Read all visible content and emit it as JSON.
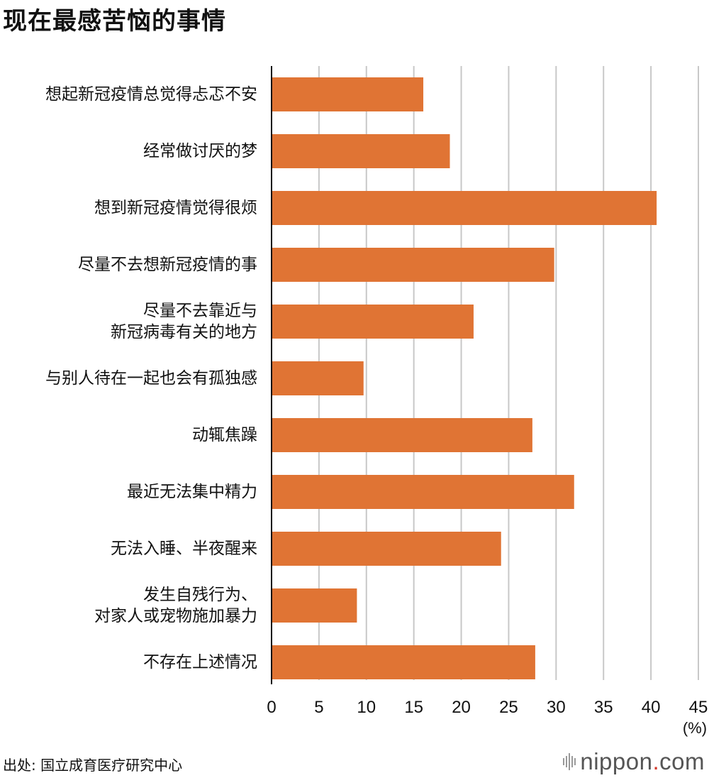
{
  "title": "现在最感苦恼的事情",
  "chart_data": {
    "type": "bar",
    "orientation": "horizontal",
    "categories": [
      [
        "想起新冠疫情总觉得忐忑不安"
      ],
      [
        "经常做讨厌的梦"
      ],
      [
        "想到新冠疫情觉得很烦"
      ],
      [
        "尽量不去想新冠疫情的事"
      ],
      [
        "尽量不去靠近与",
        "新冠病毒有关的地方"
      ],
      [
        "与别人待在一起也会有孤独感"
      ],
      [
        "动辄焦躁"
      ],
      [
        "最近无法集中精力"
      ],
      [
        "无法入睡、半夜醒来"
      ],
      [
        "发生自残行为、",
        "对家人或宠物施加暴力"
      ],
      [
        "不存在上述情况"
      ]
    ],
    "values": [
      16.0,
      18.8,
      40.6,
      29.8,
      21.3,
      9.7,
      27.5,
      31.9,
      24.2,
      9.0,
      27.8
    ],
    "xlim": [
      0,
      45
    ],
    "ticks": [
      0,
      5,
      10,
      15,
      20,
      25,
      30,
      35,
      40,
      45
    ],
    "unit": "(%)",
    "grid": true,
    "bar_color": "#e07434",
    "grid_color": "#c8c8c8"
  },
  "source": "出处: 国立成育医疗研究中心",
  "logo": {
    "name": "nippon",
    "dot": ".",
    "suffix": "com"
  }
}
